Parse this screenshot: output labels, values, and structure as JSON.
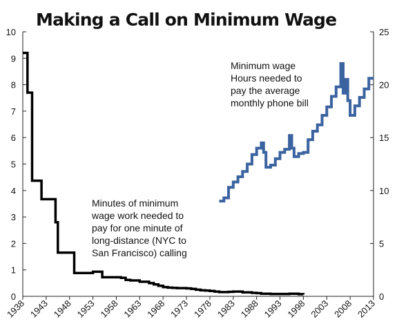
{
  "chart_data": {
    "type": "line",
    "title": "Making a Call on Minimum Wage",
    "xlabel": "",
    "ylabel_left": "",
    "ylabel_right": "",
    "xlim": [
      1938,
      2013
    ],
    "ylim_left": [
      0,
      10
    ],
    "ylim_right": [
      0,
      25
    ],
    "grid": false,
    "x_ticks": [
      1938,
      1943,
      1948,
      1953,
      1958,
      1963,
      1968,
      1973,
      1978,
      1983,
      1988,
      1993,
      1998,
      2003,
      2008,
      2013
    ],
    "y_ticks_left": [
      0,
      1,
      2,
      3,
      4,
      5,
      6,
      7,
      8,
      9,
      10
    ],
    "y_ticks_right": [
      0,
      5,
      10,
      15,
      20,
      25
    ],
    "series": [
      {
        "axis": "left",
        "color": "#000000",
        "step": true,
        "annotation": [
          "Minutes of minimum",
          "wage  work needed to",
          "pay for one minute of",
          "long-distance (NYC to",
          "San Francisco) calling"
        ],
        "x": [
          1938,
          1939,
          1940,
          1941,
          1942,
          1943,
          1944,
          1945,
          1945.5,
          1946,
          1947,
          1948,
          1949,
          1950,
          1951,
          1952,
          1953,
          1954,
          1955,
          1956,
          1957,
          1958,
          1959,
          1960,
          1961,
          1962,
          1963,
          1964,
          1965,
          1966,
          1967,
          1968,
          1969,
          1970,
          1971,
          1972,
          1973,
          1974,
          1975,
          1976,
          1977,
          1978,
          1979,
          1980,
          1981,
          1982,
          1983,
          1984,
          1985,
          1986,
          1987,
          1988,
          1989,
          1990,
          1991,
          1992,
          1993,
          1994,
          1995,
          1996,
          1997,
          1998
        ],
        "y": [
          9.2,
          7.7,
          4.37,
          4.37,
          3.67,
          3.67,
          3.67,
          2.8,
          1.65,
          1.65,
          1.65,
          1.65,
          0.88,
          0.88,
          0.88,
          0.88,
          0.93,
          0.93,
          0.72,
          0.72,
          0.72,
          0.72,
          0.7,
          0.62,
          0.6,
          0.6,
          0.55,
          0.55,
          0.5,
          0.45,
          0.4,
          0.35,
          0.33,
          0.32,
          0.31,
          0.31,
          0.3,
          0.28,
          0.25,
          0.23,
          0.22,
          0.2,
          0.18,
          0.16,
          0.16,
          0.17,
          0.18,
          0.18,
          0.15,
          0.15,
          0.13,
          0.12,
          0.1,
          0.1,
          0.09,
          0.09,
          0.09,
          0.09,
          0.1,
          0.1,
          0.08,
          0.07
        ]
      },
      {
        "axis": "right",
        "color": "#3B63A0",
        "step": true,
        "annotation": [
          "Minimum wage",
          "Hours needed to",
          "pay the average",
          "monthly phone bill"
        ],
        "x": [
          1980,
          1981,
          1982,
          1983,
          1984,
          1985,
          1986,
          1987,
          1988,
          1989,
          1989.5,
          1990,
          1991,
          1992,
          1993,
          1994,
          1995,
          1995.5,
          1996,
          1997,
          1998,
          1999,
          2000,
          2001,
          2002,
          2003,
          2004,
          2005,
          2006,
          2006.5,
          2007,
          2007.5,
          2008,
          2009,
          2010,
          2011,
          2012,
          2013
        ],
        "y": [
          9.0,
          9.3,
          10.3,
          10.8,
          11.3,
          11.8,
          12.5,
          13.4,
          14.0,
          14.5,
          13.6,
          12.2,
          12.4,
          13.0,
          13.6,
          13.9,
          15.2,
          14.0,
          13.2,
          13.5,
          13.6,
          14.8,
          15.6,
          16.2,
          17.1,
          17.9,
          18.9,
          19.8,
          22.0,
          19.2,
          20.5,
          18.5,
          17.1,
          18.0,
          18.8,
          19.6,
          20.6,
          20.6
        ]
      }
    ]
  }
}
